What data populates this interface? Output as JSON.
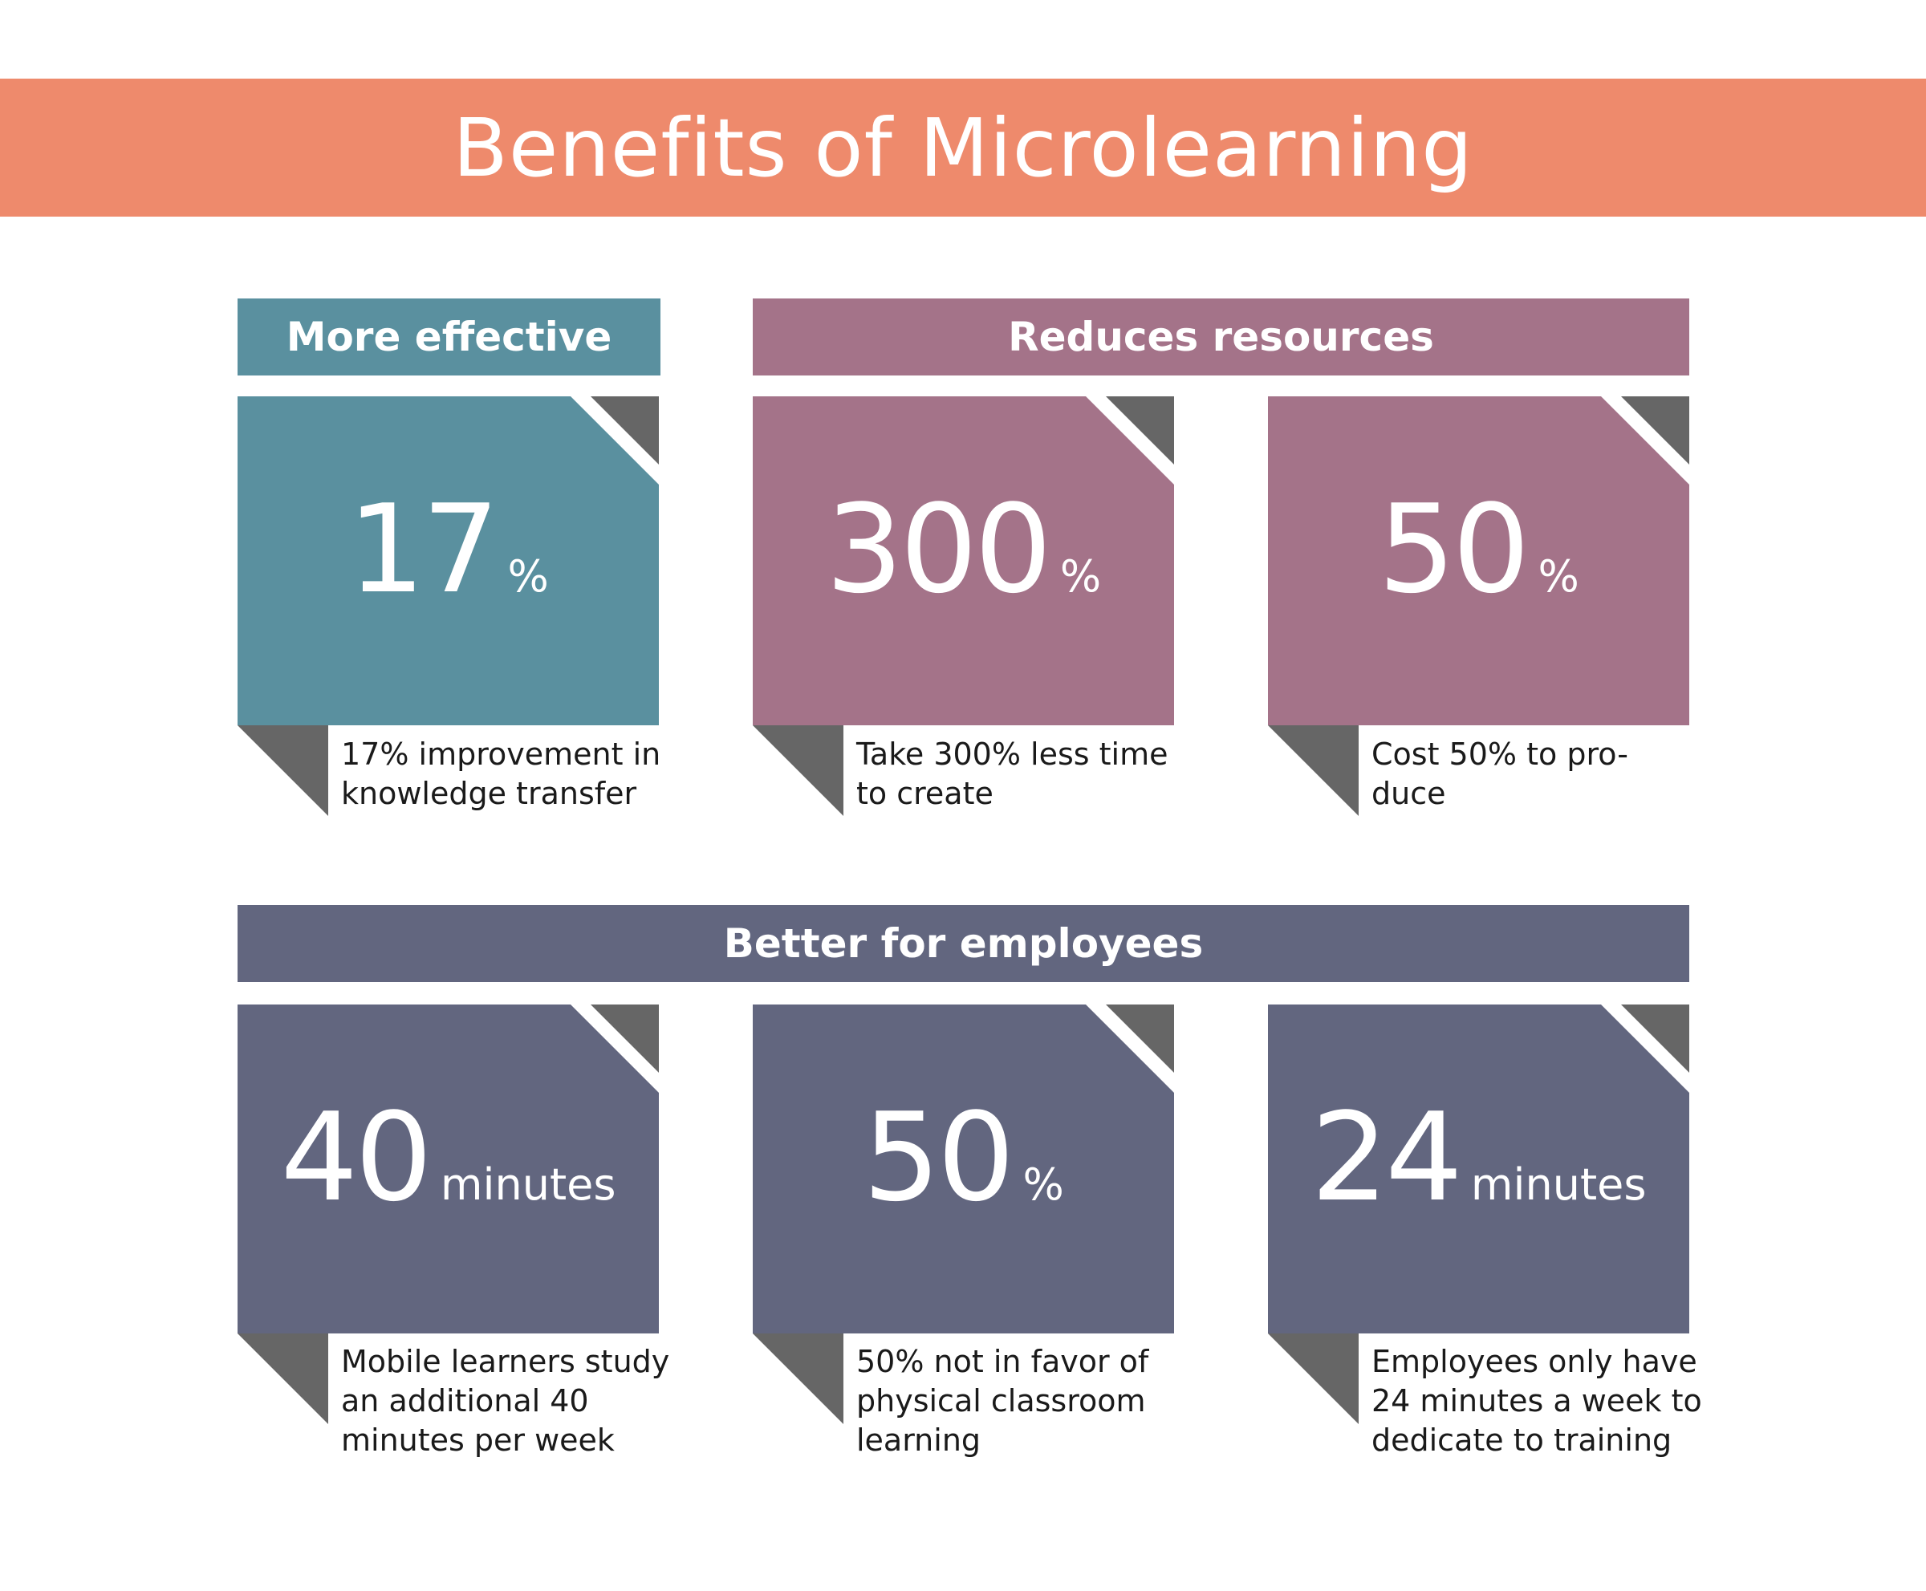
{
  "title": "Benefits of Microlearning",
  "colors": {
    "title_bar": "#ee8a6c",
    "effective": "#5a909f",
    "resources": "#a47389",
    "employees": "#62667f",
    "fold": "#666666"
  },
  "sections": {
    "effective": {
      "label": "More effective"
    },
    "resources": {
      "label": "Reduces resources"
    },
    "employees": {
      "label": "Better for employees"
    }
  },
  "cards": [
    {
      "value": "17",
      "unit": "%",
      "description": "17% improvement in knowledge transfer"
    },
    {
      "value": "300",
      "unit": "%",
      "description": "Take 300% less time to create"
    },
    {
      "value": "50",
      "unit": "%",
      "description": "Cost 50% to pro-duce"
    },
    {
      "value": "40",
      "unit": "minutes",
      "description": "Mobile learners study an additional 40 minutes per week"
    },
    {
      "value": "50",
      "unit": "%",
      "description": "50% not in favor of physical classroom learning"
    },
    {
      "value": "24",
      "unit": "minutes",
      "description": "Employees only have 24 minutes a week to dedicate to training"
    }
  ]
}
